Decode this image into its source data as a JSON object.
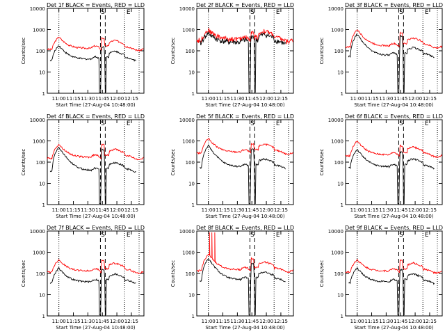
{
  "chart_data": [
    {
      "type": "line",
      "panel_title": "Det 1f BLACK = Events, RED = LLD",
      "xlabel": "Start Time (27-Aug-04 10:48:00)",
      "ylabel": "Counts/sec",
      "yscale": "log",
      "ylim": [
        1,
        10000
      ],
      "xlim_minutes_after_start": [
        0,
        100
      ],
      "xtick_labels": [
        "11:00",
        "11:15",
        "11:30",
        "11:45",
        "12:00",
        "12:15"
      ],
      "ytick_labels": [
        "1",
        "10",
        "100",
        "1000",
        "10000"
      ],
      "markers": [
        {
          "label": "S",
          "style": "dashed"
        },
        {
          "label": "E",
          "style": "dotted"
        }
      ],
      "series": [
        {
          "color": "#ff0000",
          "profile": "flare",
          "base": 130,
          "peak": 450,
          "bump": 400
        },
        {
          "color": "#000000",
          "profile": "flare",
          "base": 40,
          "peak": 180,
          "bump": 150
        }
      ]
    },
    {
      "type": "line",
      "panel_title": "Det 2f BLACK = Events, RED = LLD",
      "xlabel": "Start Time (27-Aug-04 10:48:00)",
      "ylabel": "Counts/sec",
      "yscale": "log",
      "ylim": [
        1,
        10000
      ],
      "xlim_minutes_after_start": [
        0,
        100
      ],
      "xtick_labels": [
        "11:00",
        "11:15",
        "11:30",
        "11:45",
        "12:00",
        "12:15"
      ],
      "ytick_labels": [
        "1",
        "10",
        "100",
        "1000",
        "10000"
      ],
      "markers": [
        {
          "label": "S",
          "style": "dashed"
        },
        {
          "label": "E",
          "style": "dotted"
        }
      ],
      "series": [
        {
          "color": "#ff0000",
          "profile": "noisy",
          "base": 350,
          "peak": 1000,
          "bump": 700
        },
        {
          "color": "#000000",
          "profile": "noisy",
          "base": 250,
          "peak": 700,
          "bump": 500
        }
      ]
    },
    {
      "type": "line",
      "panel_title": "Det 3f BLACK = Events, RED = LLD",
      "xlabel": "Start Time (27-Aug-04 10:48:00)",
      "ylabel": "Counts/sec",
      "yscale": "log",
      "ylim": [
        1,
        10000
      ],
      "xlim_minutes_after_start": [
        0,
        100
      ],
      "xtick_labels": [
        "11:00",
        "11:15",
        "11:30",
        "11:45",
        "12:00",
        "12:15"
      ],
      "ytick_labels": [
        "1",
        "10",
        "100",
        "1000",
        "10000"
      ],
      "markers": [
        {
          "label": "S",
          "style": "dashed"
        },
        {
          "label": "E",
          "style": "dotted"
        }
      ],
      "series": [
        {
          "color": "#ff0000",
          "profile": "flare",
          "base": 170,
          "peak": 1000,
          "bump": 700
        },
        {
          "color": "#000000",
          "profile": "flare",
          "base": 60,
          "peak": 600,
          "bump": 500
        }
      ]
    },
    {
      "type": "line",
      "panel_title": "Det 4f BLACK = Events, RED = LLD",
      "xlabel": "Start Time (27-Aug-04 10:48:00)",
      "ylabel": "Counts/sec",
      "yscale": "log",
      "ylim": [
        1,
        10000
      ],
      "xlim_minutes_after_start": [
        0,
        100
      ],
      "xtick_labels": [
        "11:00",
        "11:15",
        "11:30",
        "11:45",
        "12:00",
        "12:15"
      ],
      "ytick_labels": [
        "1",
        "10",
        "100",
        "1000",
        "10000"
      ],
      "markers": [
        {
          "label": "S",
          "style": "dashed"
        },
        {
          "label": "E",
          "style": "dotted"
        }
      ],
      "series": [
        {
          "color": "#ff0000",
          "profile": "flare",
          "base": 170,
          "peak": 700,
          "bump": 650
        },
        {
          "color": "#000000",
          "profile": "flare",
          "base": 40,
          "peak": 500,
          "bump": 400
        }
      ]
    },
    {
      "type": "line",
      "panel_title": "Det 5f BLACK = Events, RED = LLD",
      "xlabel": "Start Time (27-Aug-04 10:48:00)",
      "ylabel": "Counts/sec",
      "yscale": "log",
      "ylim": [
        1,
        10000
      ],
      "xlim_minutes_after_start": [
        0,
        100
      ],
      "xtick_labels": [
        "11:00",
        "11:15",
        "11:30",
        "11:45",
        "12:00",
        "12:15"
      ],
      "ytick_labels": [
        "1",
        "10",
        "100",
        "1000",
        "10000"
      ],
      "markers": [
        {
          "label": "S",
          "style": "dashed"
        },
        {
          "label": "E",
          "style": "dotted"
        }
      ],
      "series": [
        {
          "color": "#ff0000",
          "profile": "flare",
          "base": 300,
          "peak": 1300,
          "bump": 700
        },
        {
          "color": "#000000",
          "profile": "flare",
          "base": 60,
          "peak": 600,
          "bump": 400
        }
      ]
    },
    {
      "type": "line",
      "panel_title": "Det 6f BLACK = Events, RED = LLD",
      "xlabel": "Start Time (27-Aug-04 10:48:00)",
      "ylabel": "Counts/sec",
      "yscale": "log",
      "ylim": [
        1,
        10000
      ],
      "xlim_minutes_after_start": [
        0,
        100
      ],
      "xtick_labels": [
        "11:00",
        "11:15",
        "11:30",
        "11:45",
        "12:00",
        "12:15"
      ],
      "ytick_labels": [
        "1",
        "10",
        "100",
        "1000",
        "10000"
      ],
      "markers": [
        {
          "label": "S",
          "style": "dashed"
        },
        {
          "label": "E",
          "style": "dotted"
        }
      ],
      "series": [
        {
          "color": "#ff0000",
          "profile": "flare",
          "base": 220,
          "peak": 1000,
          "bump": 600
        },
        {
          "color": "#000000",
          "profile": "flare",
          "base": 60,
          "peak": 400,
          "bump": 300
        }
      ]
    },
    {
      "type": "line",
      "panel_title": "Det 7f BLACK = Events, RED = LLD",
      "xlabel": "Start Time (27-Aug-04 10:48:00)",
      "ylabel": "Counts/sec",
      "yscale": "log",
      "ylim": [
        1,
        10000
      ],
      "xlim_minutes_after_start": [
        0,
        100
      ],
      "xtick_labels": [
        "11:00",
        "11:15",
        "11:30",
        "11:45",
        "12:00",
        "12:15"
      ],
      "ytick_labels": [
        "1",
        "10",
        "100",
        "1000",
        "10000"
      ],
      "markers": [
        {
          "label": "S",
          "style": "dashed"
        },
        {
          "label": "E",
          "style": "dotted"
        }
      ],
      "series": [
        {
          "color": "#ff0000",
          "profile": "flare",
          "base": 130,
          "peak": 450,
          "bump": 400
        },
        {
          "color": "#000000",
          "profile": "flare",
          "base": 40,
          "peak": 180,
          "bump": 150
        }
      ]
    },
    {
      "type": "line",
      "panel_title": "Det 8f BLACK = Events, RED = LLD",
      "xlabel": "Start Time (27-Aug-04 10:48:00)",
      "ylabel": "Counts/sec",
      "yscale": "log",
      "ylim": [
        1,
        10000
      ],
      "xlim_minutes_after_start": [
        0,
        100
      ],
      "xtick_labels": [
        "11:00",
        "11:15",
        "11:30",
        "11:45",
        "12:00",
        "12:15"
      ],
      "ytick_labels": [
        "1",
        "10",
        "100",
        "1000",
        "10000"
      ],
      "markers": [
        {
          "label": "S",
          "style": "dashed"
        },
        {
          "label": "E",
          "style": "dotted"
        }
      ],
      "series": [
        {
          "color": "#ff0000",
          "profile": "spiky",
          "base": 150,
          "peak": 800,
          "bump": 500
        },
        {
          "color": "#000000",
          "profile": "flare",
          "base": 50,
          "peak": 500,
          "bump": 300
        }
      ]
    },
    {
      "type": "line",
      "panel_title": "Det 9f BLACK = Events, RED = LLD",
      "xlabel": "Start Time (27-Aug-04 10:48:00)",
      "ylabel": "Counts/sec",
      "yscale": "log",
      "ylim": [
        1,
        10000
      ],
      "xlim_minutes_after_start": [
        0,
        100
      ],
      "xtick_labels": [
        "11:00",
        "11:15",
        "11:30",
        "11:45",
        "12:00",
        "12:15"
      ],
      "ytick_labels": [
        "1",
        "10",
        "100",
        "1000",
        "10000"
      ],
      "markers": [
        {
          "label": "S",
          "style": "dashed"
        },
        {
          "label": "E",
          "style": "dotted"
        }
      ],
      "series": [
        {
          "color": "#ff0000",
          "profile": "flare",
          "base": 130,
          "peak": 450,
          "bump": 400
        },
        {
          "color": "#000000",
          "profile": "flare",
          "base": 40,
          "peak": 180,
          "bump": 150
        }
      ]
    }
  ]
}
